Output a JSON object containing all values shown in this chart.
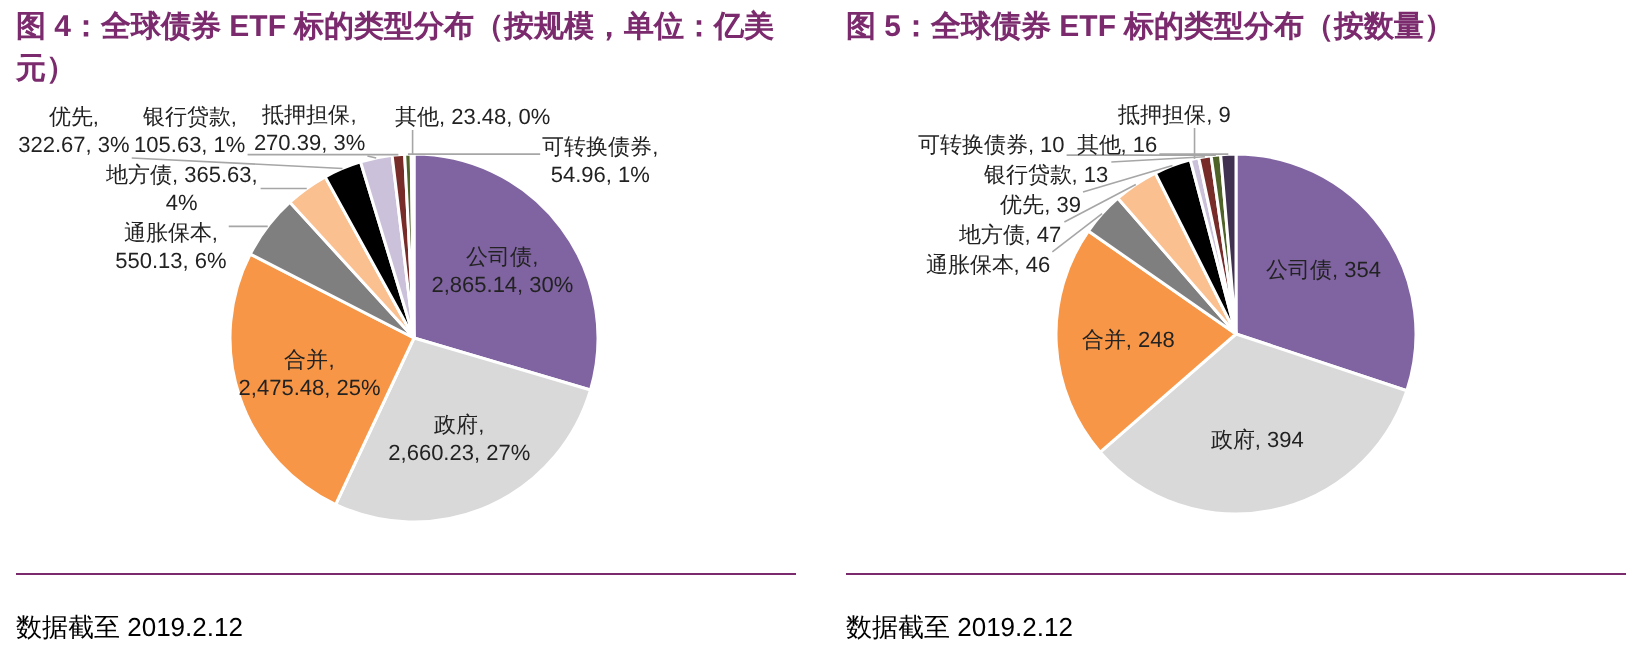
{
  "chart_data": [
    {
      "type": "pie",
      "title": "图 4：全球债券 ETF 标的类型分布（按规模，单位：亿美元）",
      "categories": [
        "公司债",
        "政府",
        "合并",
        "通胀保本",
        "地方债",
        "优先",
        "抵押担保",
        "银行贷款",
        "可转换债券",
        "其他"
      ],
      "values": [
        2865.14,
        2660.23,
        2475.48,
        550.13,
        365.63,
        322.67,
        270.39,
        105.63,
        54.96,
        23.48
      ],
      "colors": [
        "#8064a2",
        "#d9d9d9",
        "#f79646",
        "#7f7f7f",
        "#fac090",
        "#000000",
        "#ccc1da",
        "#772c2a",
        "#4f6228",
        "#403151"
      ],
      "value_labels": [
        ",\n2,865.14, 30%",
        ",\n2,660.23, 27%",
        ",\n2,475.48, 25%",
        ",\n550.13, 6%",
        ", 365.63,\n4%",
        ",\n322.67, 3%",
        ",\n270.39, 3%",
        ",\n105.63, 1%",
        ",\n54.96, 1%",
        ", 23.48, 0%"
      ],
      "annotations": [
        "数据截至 2019.2.12"
      ]
    },
    {
      "type": "pie",
      "title": "图 5：全球债券 ETF 标的类型分布（按数量）",
      "categories": [
        "公司债",
        "政府",
        "合并",
        "通胀保本",
        "地方债",
        "优先",
        "抵押担保",
        "银行贷款",
        "可转换债券",
        "其他"
      ],
      "values": [
        354,
        394,
        248,
        46,
        47,
        39,
        9,
        13,
        10,
        16
      ],
      "colors": [
        "#8064a2",
        "#d9d9d9",
        "#f79646",
        "#7f7f7f",
        "#fac090",
        "#000000",
        "#ccc1da",
        "#772c2a",
        "#4f6228",
        "#403151"
      ],
      "value_labels": [
        ", 354",
        ", 394",
        ", 248",
        ", 46",
        ", 47",
        ", 39",
        ", 9",
        ", 13",
        ", 10",
        ", 16"
      ],
      "annotations": [
        "数据截至 2019.2.12"
      ]
    }
  ]
}
